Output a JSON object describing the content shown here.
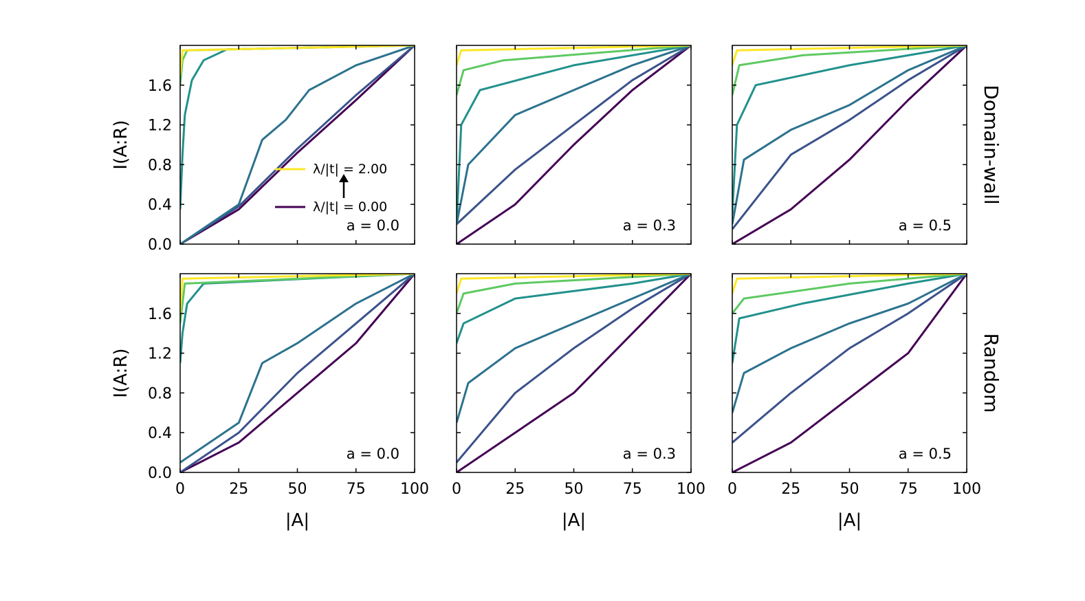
{
  "chart_data": {
    "type": "line",
    "layout": "2x3 grid",
    "xlabel": "|A|",
    "ylabel": "I(A:R)",
    "xlim": [
      0,
      100
    ],
    "ylim": [
      0,
      2.0
    ],
    "xticks": [
      0,
      25,
      50,
      75,
      100
    ],
    "yticks": [
      0.0,
      0.4,
      0.8,
      1.2,
      1.6
    ],
    "xtick_labels": [
      "0",
      "25",
      "50",
      "75",
      "100"
    ],
    "ytick_labels": [
      "0.0",
      "0.4",
      "0.8",
      "1.2",
      "1.6"
    ],
    "colormap": "viridis",
    "color_low": "#440154",
    "color_high": "#fde725",
    "row_titles": [
      "Domain-wall",
      "Random"
    ],
    "legend": {
      "high_label": "λ/|t| = 2.00",
      "low_label": "λ/|t| = 0.00",
      "high_color": "#fde725",
      "low_color": "#440154"
    },
    "panels": [
      {
        "row": 0,
        "col": 0,
        "row_title": "Domain-wall",
        "annotation": "a = 0.0",
        "series": [
          {
            "lambda": 0.0,
            "color": "#440154",
            "points": [
              [
                0,
                0
              ],
              [
                25,
                0.35
              ],
              [
                50,
                0.92
              ],
              [
                75,
                1.45
              ],
              [
                100,
                2.0
              ]
            ]
          },
          {
            "lambda": 0.2,
            "color": "#3b528b",
            "points": [
              [
                0,
                0
              ],
              [
                25,
                0.38
              ],
              [
                50,
                0.96
              ],
              [
                75,
                1.5
              ],
              [
                100,
                2.0
              ]
            ]
          },
          {
            "lambda": 0.4,
            "color": "#2c728e",
            "points": [
              [
                0,
                0
              ],
              [
                25,
                0.4
              ],
              [
                35,
                1.05
              ],
              [
                45,
                1.25
              ],
              [
                55,
                1.55
              ],
              [
                75,
                1.8
              ],
              [
                100,
                2.0
              ]
            ]
          },
          {
            "lambda": 0.6,
            "color": "#21918c",
            "points": [
              [
                0,
                0.35
              ],
              [
                1,
                0.9
              ],
              [
                2,
                1.3
              ],
              [
                5,
                1.65
              ],
              [
                10,
                1.85
              ],
              [
                20,
                1.96
              ],
              [
                100,
                2.0
              ]
            ]
          },
          {
            "lambda": 1.2,
            "color": "#5ec962",
            "points": [
              [
                0,
                1.6
              ],
              [
                1,
                1.85
              ],
              [
                3,
                1.95
              ],
              [
                100,
                2.0
              ]
            ]
          },
          {
            "lambda": 2.0,
            "color": "#fde725",
            "points": [
              [
                0,
                1.7
              ],
              [
                1,
                1.95
              ],
              [
                100,
                2.0
              ]
            ]
          }
        ]
      },
      {
        "row": 0,
        "col": 1,
        "row_title": "Domain-wall",
        "annotation": "a = 0.3",
        "series": [
          {
            "lambda": 0.0,
            "color": "#440154",
            "points": [
              [
                0,
                0
              ],
              [
                25,
                0.4
              ],
              [
                50,
                1.0
              ],
              [
                75,
                1.55
              ],
              [
                100,
                2.0
              ]
            ]
          },
          {
            "lambda": 0.1,
            "color": "#3b528b",
            "points": [
              [
                0,
                0.2
              ],
              [
                25,
                0.75
              ],
              [
                50,
                1.2
              ],
              [
                75,
                1.65
              ],
              [
                100,
                2.0
              ]
            ]
          },
          {
            "lambda": 0.2,
            "color": "#2c728e",
            "points": [
              [
                0,
                0.2
              ],
              [
                5,
                0.8
              ],
              [
                25,
                1.3
              ],
              [
                50,
                1.55
              ],
              [
                75,
                1.8
              ],
              [
                100,
                2.0
              ]
            ]
          },
          {
            "lambda": 0.4,
            "color": "#21918c",
            "points": [
              [
                0,
                0.2
              ],
              [
                2,
                1.2
              ],
              [
                10,
                1.55
              ],
              [
                50,
                1.8
              ],
              [
                100,
                2.0
              ]
            ]
          },
          {
            "lambda": 0.8,
            "color": "#5ec962",
            "points": [
              [
                0,
                1.5
              ],
              [
                3,
                1.75
              ],
              [
                20,
                1.85
              ],
              [
                100,
                2.0
              ]
            ]
          },
          {
            "lambda": 2.0,
            "color": "#fde725",
            "points": [
              [
                0,
                1.8
              ],
              [
                2,
                1.95
              ],
              [
                100,
                2.0
              ]
            ]
          }
        ]
      },
      {
        "row": 0,
        "col": 2,
        "row_title": "Domain-wall",
        "annotation": "a = 0.5",
        "series": [
          {
            "lambda": 0.0,
            "color": "#440154",
            "points": [
              [
                0,
                0
              ],
              [
                25,
                0.35
              ],
              [
                50,
                0.85
              ],
              [
                75,
                1.45
              ],
              [
                100,
                2.0
              ]
            ]
          },
          {
            "lambda": 0.1,
            "color": "#3b528b",
            "points": [
              [
                0,
                0.15
              ],
              [
                25,
                0.9
              ],
              [
                50,
                1.25
              ],
              [
                75,
                1.65
              ],
              [
                100,
                2.0
              ]
            ]
          },
          {
            "lambda": 0.2,
            "color": "#2c728e",
            "points": [
              [
                0,
                0.2
              ],
              [
                5,
                0.85
              ],
              [
                25,
                1.15
              ],
              [
                50,
                1.4
              ],
              [
                75,
                1.75
              ],
              [
                100,
                2.0
              ]
            ]
          },
          {
            "lambda": 0.4,
            "color": "#21918c",
            "points": [
              [
                0,
                0.3
              ],
              [
                2,
                1.2
              ],
              [
                10,
                1.6
              ],
              [
                50,
                1.8
              ],
              [
                100,
                2.0
              ]
            ]
          },
          {
            "lambda": 0.8,
            "color": "#5ec962",
            "points": [
              [
                0,
                1.5
              ],
              [
                3,
                1.8
              ],
              [
                30,
                1.9
              ],
              [
                100,
                2.0
              ]
            ]
          },
          {
            "lambda": 2.0,
            "color": "#fde725",
            "points": [
              [
                0,
                1.8
              ],
              [
                2,
                1.95
              ],
              [
                100,
                2.0
              ]
            ]
          }
        ]
      },
      {
        "row": 1,
        "col": 0,
        "row_title": "Random",
        "annotation": "a = 0.0",
        "series": [
          {
            "lambda": 0.0,
            "color": "#440154",
            "points": [
              [
                0,
                0
              ],
              [
                25,
                0.3
              ],
              [
                50,
                0.8
              ],
              [
                75,
                1.3
              ],
              [
                100,
                2.0
              ]
            ]
          },
          {
            "lambda": 0.2,
            "color": "#3b528b",
            "points": [
              [
                0,
                0
              ],
              [
                25,
                0.4
              ],
              [
                50,
                1.0
              ],
              [
                75,
                1.5
              ],
              [
                100,
                2.0
              ]
            ]
          },
          {
            "lambda": 0.4,
            "color": "#2c728e",
            "points": [
              [
                0,
                0.1
              ],
              [
                25,
                0.5
              ],
              [
                35,
                1.1
              ],
              [
                50,
                1.3
              ],
              [
                75,
                1.7
              ],
              [
                100,
                2.0
              ]
            ]
          },
          {
            "lambda": 0.6,
            "color": "#21918c",
            "points": [
              [
                0,
                1.1
              ],
              [
                1,
                1.4
              ],
              [
                3,
                1.7
              ],
              [
                10,
                1.9
              ],
              [
                100,
                2.0
              ]
            ]
          },
          {
            "lambda": 1.2,
            "color": "#5ec962",
            "points": [
              [
                0,
                1.5
              ],
              [
                2,
                1.9
              ],
              [
                100,
                2.0
              ]
            ]
          },
          {
            "lambda": 2.0,
            "color": "#fde725",
            "points": [
              [
                0,
                1.6
              ],
              [
                1,
                1.95
              ],
              [
                100,
                2.0
              ]
            ]
          }
        ]
      },
      {
        "row": 1,
        "col": 1,
        "row_title": "Random",
        "annotation": "a = 0.3",
        "series": [
          {
            "lambda": 0.0,
            "color": "#440154",
            "points": [
              [
                0,
                0
              ],
              [
                25,
                0.4
              ],
              [
                50,
                0.8
              ],
              [
                75,
                1.4
              ],
              [
                100,
                2.0
              ]
            ]
          },
          {
            "lambda": 0.1,
            "color": "#3b528b",
            "points": [
              [
                0,
                0.1
              ],
              [
                25,
                0.8
              ],
              [
                50,
                1.25
              ],
              [
                75,
                1.65
              ],
              [
                100,
                2.0
              ]
            ]
          },
          {
            "lambda": 0.2,
            "color": "#2c728e",
            "points": [
              [
                0,
                0.5
              ],
              [
                5,
                0.9
              ],
              [
                25,
                1.25
              ],
              [
                50,
                1.5
              ],
              [
                75,
                1.75
              ],
              [
                100,
                2.0
              ]
            ]
          },
          {
            "lambda": 0.4,
            "color": "#21918c",
            "points": [
              [
                0,
                1.3
              ],
              [
                3,
                1.5
              ],
              [
                25,
                1.75
              ],
              [
                75,
                1.9
              ],
              [
                100,
                2.0
              ]
            ]
          },
          {
            "lambda": 0.8,
            "color": "#5ec962",
            "points": [
              [
                0,
                1.6
              ],
              [
                3,
                1.8
              ],
              [
                25,
                1.9
              ],
              [
                100,
                2.0
              ]
            ]
          },
          {
            "lambda": 2.0,
            "color": "#fde725",
            "points": [
              [
                0,
                1.8
              ],
              [
                2,
                1.95
              ],
              [
                100,
                2.0
              ]
            ]
          }
        ]
      },
      {
        "row": 1,
        "col": 2,
        "row_title": "Random",
        "annotation": "a = 0.5",
        "series": [
          {
            "lambda": 0.0,
            "color": "#440154",
            "points": [
              [
                0,
                0
              ],
              [
                25,
                0.3
              ],
              [
                50,
                0.75
              ],
              [
                75,
                1.2
              ],
              [
                100,
                2.0
              ]
            ]
          },
          {
            "lambda": 0.1,
            "color": "#3b528b",
            "points": [
              [
                0,
                0.3
              ],
              [
                25,
                0.8
              ],
              [
                50,
                1.25
              ],
              [
                75,
                1.6
              ],
              [
                100,
                2.0
              ]
            ]
          },
          {
            "lambda": 0.2,
            "color": "#2c728e",
            "points": [
              [
                0,
                0.6
              ],
              [
                5,
                1.0
              ],
              [
                25,
                1.25
              ],
              [
                50,
                1.5
              ],
              [
                75,
                1.7
              ],
              [
                100,
                2.0
              ]
            ]
          },
          {
            "lambda": 0.4,
            "color": "#21918c",
            "points": [
              [
                0,
                1.1
              ],
              [
                3,
                1.55
              ],
              [
                30,
                1.7
              ],
              [
                75,
                1.9
              ],
              [
                100,
                2.0
              ]
            ]
          },
          {
            "lambda": 0.8,
            "color": "#5ec962",
            "points": [
              [
                0,
                1.6
              ],
              [
                5,
                1.75
              ],
              [
                50,
                1.9
              ],
              [
                100,
                2.0
              ]
            ]
          },
          {
            "lambda": 2.0,
            "color": "#fde725",
            "points": [
              [
                0,
                1.8
              ],
              [
                2,
                1.95
              ],
              [
                100,
                2.0
              ]
            ]
          }
        ]
      }
    ]
  }
}
